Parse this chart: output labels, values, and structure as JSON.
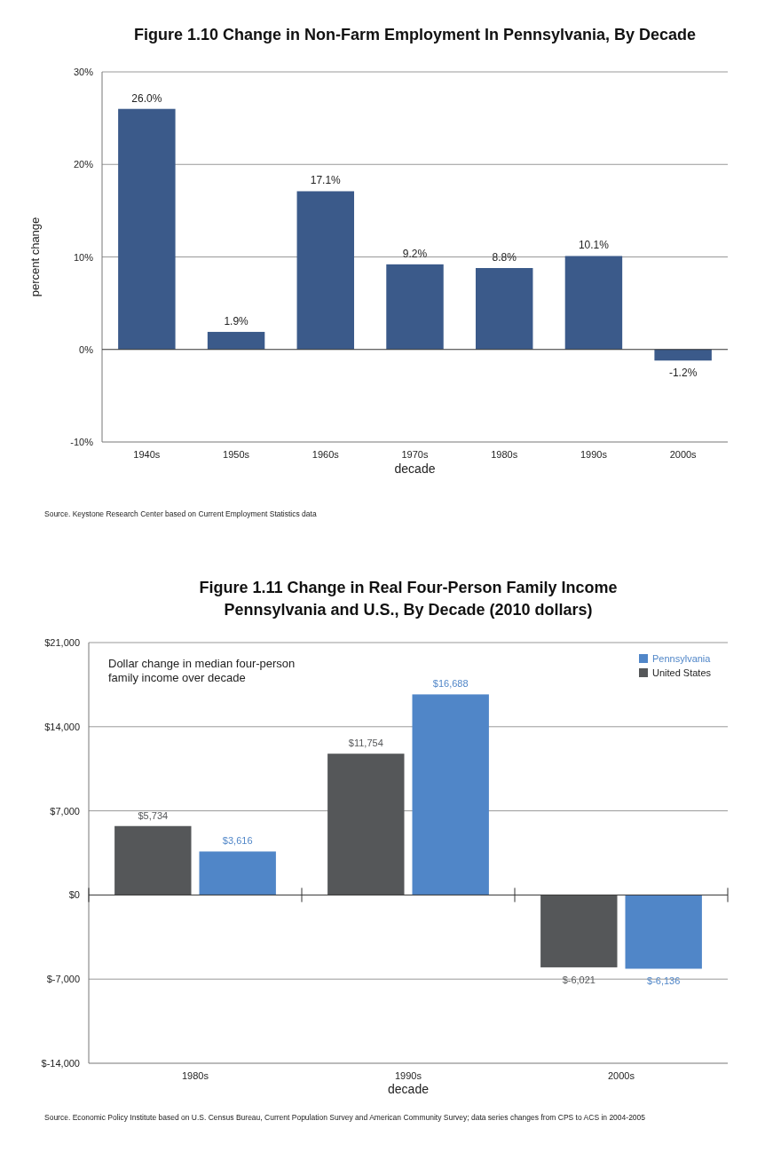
{
  "chart_data": [
    {
      "type": "bar",
      "title": "Figure 1.10 Change in Non-Farm Employment In Pennsylvania, By Decade",
      "xlabel": "decade",
      "ylabel": "percent change",
      "categories": [
        "1940s",
        "1950s",
        "1960s",
        "1970s",
        "1980s",
        "1990s",
        "2000s"
      ],
      "series": [
        {
          "color": "#3b5a8a",
          "values": [
            26.0,
            1.9,
            17.1,
            9.2,
            8.8,
            10.1,
            -1.2
          ],
          "value_labels": [
            "26.0%",
            "1.9%",
            "17.1%",
            "9.2%",
            "8.8%",
            "10.1%",
            "-1.2%"
          ]
        }
      ],
      "ylim": [
        -10,
        30
      ],
      "yticks": [
        {
          "value": -10,
          "label": "-10%"
        },
        {
          "value": 0,
          "label": "0%"
        },
        {
          "value": 10,
          "label": "10%"
        },
        {
          "value": 20,
          "label": "20%"
        },
        {
          "value": 30,
          "label": "30%"
        }
      ],
      "grid": "y",
      "legend": false,
      "annotations": [
        "Source. Keystone Research Center based on Current Employment Statistics data"
      ]
    },
    {
      "type": "bar",
      "title": "Figure 1.11 Change in Real Four-Person Family Income\nPennsylvania and U.S., By Decade (2010 dollars)",
      "xlabel": "decade",
      "categories": [
        "1980s",
        "1990s",
        "2000s"
      ],
      "series": [
        {
          "name": "United States",
          "color": "#555759",
          "values": [
            5734,
            11754,
            -6021
          ],
          "value_labels": [
            "$5,734",
            "$11,754",
            "$-6,021"
          ]
        },
        {
          "name": "Pennsylvania",
          "color": "#5086c8",
          "values": [
            3616,
            16688,
            -6136
          ],
          "value_labels": [
            "$3,616",
            "$16,688",
            "$-6,136"
          ]
        }
      ],
      "ylim": [
        -14000,
        21000
      ],
      "yticks": [
        {
          "value": -14000,
          "label": "$-14,000"
        },
        {
          "value": -7000,
          "label": "$-7,000"
        },
        {
          "value": 0,
          "label": "$0"
        },
        {
          "value": 7000,
          "label": "$7,000"
        },
        {
          "value": 14000,
          "label": "$14,000"
        },
        {
          "value": 21000,
          "label": "$21,000"
        }
      ],
      "grid": "y",
      "legend": "top right",
      "annotations": [
        "Dollar change in median four-person\nfamily income over decade",
        "Source. Economic Policy Institute based on U.S. Census Bureau, Current Population Survey and American Community Survey; data series changes from CPS to ACS in 2004-2005"
      ]
    }
  ]
}
